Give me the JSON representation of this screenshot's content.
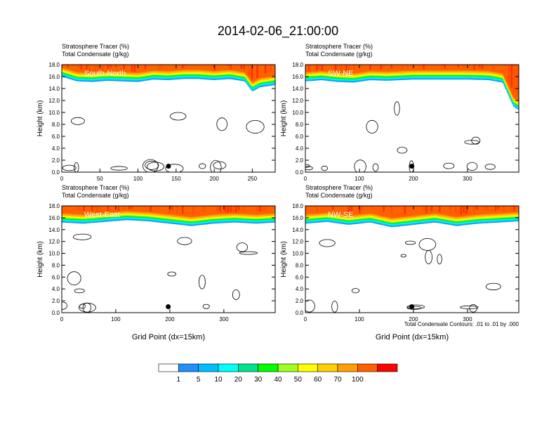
{
  "figure": {
    "title": "2014-02-06_21:00:00",
    "contour_note": "Total Condensate Contours: .01 to .01 by .000"
  },
  "chart_data": [
    {
      "type": "heatmap",
      "panel_label": "South-North",
      "field_labels": [
        "Stratosphere Tracer   (%)",
        "Total Condensate   (g/kg)"
      ],
      "ylabel": "Height (km)",
      "xlabel": "",
      "xlim": [
        0,
        280
      ],
      "ylim": [
        0,
        18
      ],
      "xticks": [
        0,
        50,
        100,
        150,
        200,
        250
      ],
      "yticks": [
        "0.0",
        "2.0",
        "4.0",
        "6.0",
        "8.0",
        "10.0",
        "12.0",
        "14.0",
        "16.0",
        "18.0"
      ],
      "tracer_base_km": [
        [
          0,
          16.0
        ],
        [
          10,
          15.6
        ],
        [
          20,
          15.2
        ],
        [
          40,
          15.1
        ],
        [
          60,
          15.3
        ],
        [
          80,
          15.2
        ],
        [
          100,
          15.1
        ],
        [
          120,
          15.5
        ],
        [
          140,
          15.4
        ],
        [
          160,
          15.6
        ],
        [
          180,
          15.6
        ],
        [
          200,
          15.4
        ],
        [
          220,
          15.6
        ],
        [
          240,
          15.2
        ],
        [
          250,
          13.5
        ],
        [
          260,
          14.2
        ],
        [
          280,
          14.6
        ]
      ],
      "marker": {
        "x": 140,
        "y": 1.0
      }
    },
    {
      "type": "heatmap",
      "panel_label": "SW-NE",
      "field_labels": [
        "Stratosphere Tracer   (%)",
        "Total Condensate   (g/kg)"
      ],
      "ylabel": "Height (km)",
      "xlabel": "",
      "xlim": [
        0,
        395
      ],
      "ylim": [
        0,
        18
      ],
      "xticks": [
        0,
        100,
        200,
        300
      ],
      "yticks": [
        "0.0",
        "2.0",
        "4.0",
        "6.0",
        "8.0",
        "10.0",
        "12.0",
        "14.0",
        "16.0",
        "18.0"
      ],
      "tracer_base_km": [
        [
          0,
          15.2
        ],
        [
          30,
          15.4
        ],
        [
          60,
          15.1
        ],
        [
          90,
          15.0
        ],
        [
          120,
          15.4
        ],
        [
          150,
          15.3
        ],
        [
          200,
          15.5
        ],
        [
          250,
          15.5
        ],
        [
          300,
          15.5
        ],
        [
          340,
          15.4
        ],
        [
          365,
          15.0
        ],
        [
          375,
          13.0
        ],
        [
          385,
          11.0
        ],
        [
          395,
          10.4
        ]
      ],
      "marker": {
        "x": 197,
        "y": 1.0
      }
    },
    {
      "type": "heatmap",
      "panel_label": "West-East",
      "field_labels": [
        "Stratosphere Tracer   (%)",
        "Total Condensate   (g/kg)"
      ],
      "ylabel": "Height (km)",
      "xlabel": "Grid Point (dx=15km)",
      "xlim": [
        0,
        395
      ],
      "ylim": [
        0,
        18
      ],
      "xticks": [
        0,
        100,
        200,
        300
      ],
      "yticks": [
        "0.0",
        "2.0",
        "4.0",
        "6.0",
        "8.0",
        "10.0",
        "12.0",
        "14.0",
        "16.0",
        "18.0"
      ],
      "tracer_base_km": [
        [
          0,
          15.2
        ],
        [
          40,
          15.0
        ],
        [
          80,
          15.3
        ],
        [
          120,
          15.6
        ],
        [
          160,
          15.4
        ],
        [
          200,
          15.0
        ],
        [
          240,
          14.6
        ],
        [
          280,
          15.0
        ],
        [
          320,
          15.2
        ],
        [
          360,
          15.0
        ],
        [
          395,
          15.2
        ]
      ],
      "marker": {
        "x": 197,
        "y": 1.0
      }
    },
    {
      "type": "heatmap",
      "panel_label": "NW-SE",
      "field_labels": [
        "Stratosphere Tracer   (%)",
        "Total Condensate   (g/kg)"
      ],
      "ylabel": "Height (km)",
      "xlabel": "Grid Point (dx=15km)",
      "xlim": [
        0,
        395
      ],
      "ylim": [
        0,
        18
      ],
      "xticks": [
        0,
        100,
        200,
        300
      ],
      "yticks": [
        "0.0",
        "2.0",
        "4.0",
        "6.0",
        "8.0",
        "10.0",
        "12.0",
        "14.0",
        "16.0",
        "18.0"
      ],
      "tracer_base_km": [
        [
          0,
          15.0
        ],
        [
          40,
          15.3
        ],
        [
          80,
          14.8
        ],
        [
          120,
          15.2
        ],
        [
          160,
          14.4
        ],
        [
          200,
          14.8
        ],
        [
          240,
          15.2
        ],
        [
          280,
          14.6
        ],
        [
          320,
          15.0
        ],
        [
          360,
          15.2
        ],
        [
          395,
          15.4
        ]
      ],
      "marker": {
        "x": 197,
        "y": 1.0
      }
    }
  ],
  "colorbar": {
    "labels": [
      "1",
      "5",
      "10",
      "20",
      "30",
      "40",
      "50",
      "60",
      "70",
      "100"
    ],
    "colors": [
      "#ffffff",
      "#1e90ff",
      "#00bfff",
      "#00ffff",
      "#00e38c",
      "#00ff00",
      "#a0ff20",
      "#ffff00",
      "#ffd000",
      "#ffa000",
      "#ff6000",
      "#ff0000"
    ]
  }
}
